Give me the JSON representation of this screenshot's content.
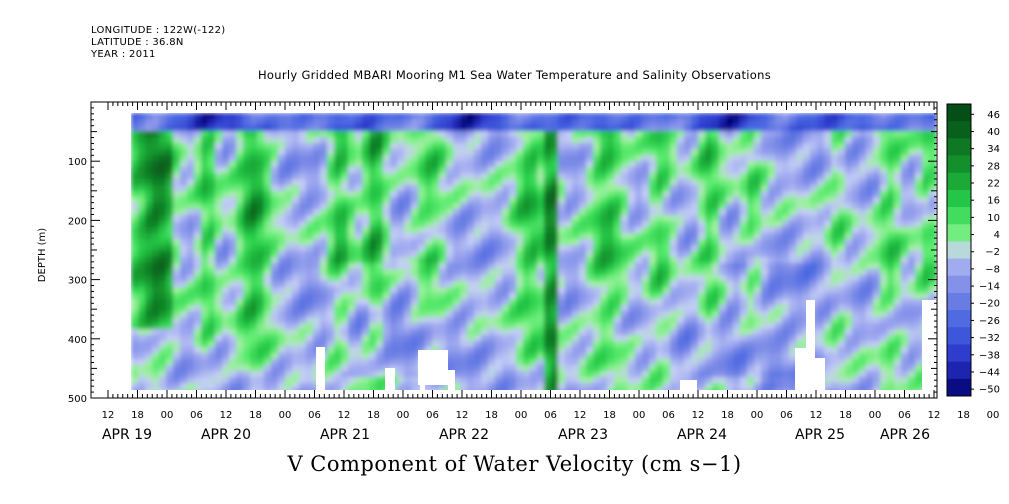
{
  "header": {
    "longitude": "LONGITUDE : 122W(-122)",
    "latitude": "LATITUDE : 36.8N",
    "year": "YEAR : 2011",
    "title": "Hourly Gridded MBARI Mooring M1 Sea Water Temperature and Salinity Observations"
  },
  "chart_data": {
    "type": "heatmap",
    "title": "Hourly Gridded MBARI Mooring M1 Sea Water Temperature and Salinity Observations",
    "xlabel": "V Component of Water Velocity (cm s−1)",
    "ylabel": "DEPTH (m)",
    "ylim": [
      500,
      0
    ],
    "y_ticks": [
      100,
      200,
      300,
      400,
      500
    ],
    "x_hour_ticks": [
      "12",
      "18",
      "00",
      "06",
      "12",
      "18",
      "00",
      "06",
      "12",
      "18",
      "00",
      "06",
      "12",
      "18",
      "00",
      "06",
      "12",
      "18",
      "00",
      "06",
      "12",
      "18",
      "00",
      "06",
      "12",
      "18",
      "00",
      "06",
      "12",
      "18",
      "00",
      "06"
    ],
    "x_day_labels": [
      "APR 19",
      "APR 20",
      "APR 21",
      "APR 22",
      "APR 23",
      "APR 24",
      "APR 25",
      "APR 26"
    ],
    "colorbar": {
      "levels": [
        "46",
        "40",
        "34",
        "28",
        "22",
        "16",
        "10",
        "4",
        "−2",
        "−8",
        "−14",
        "−20",
        "−26",
        "−32",
        "−38",
        "−44",
        "−50"
      ],
      "range": [
        -50,
        50
      ]
    },
    "data_depth_range": [
      15,
      490
    ],
    "data_time_start": "2011-04-19 18:00",
    "data_time_end": "2011-04-26 06:00"
  }
}
